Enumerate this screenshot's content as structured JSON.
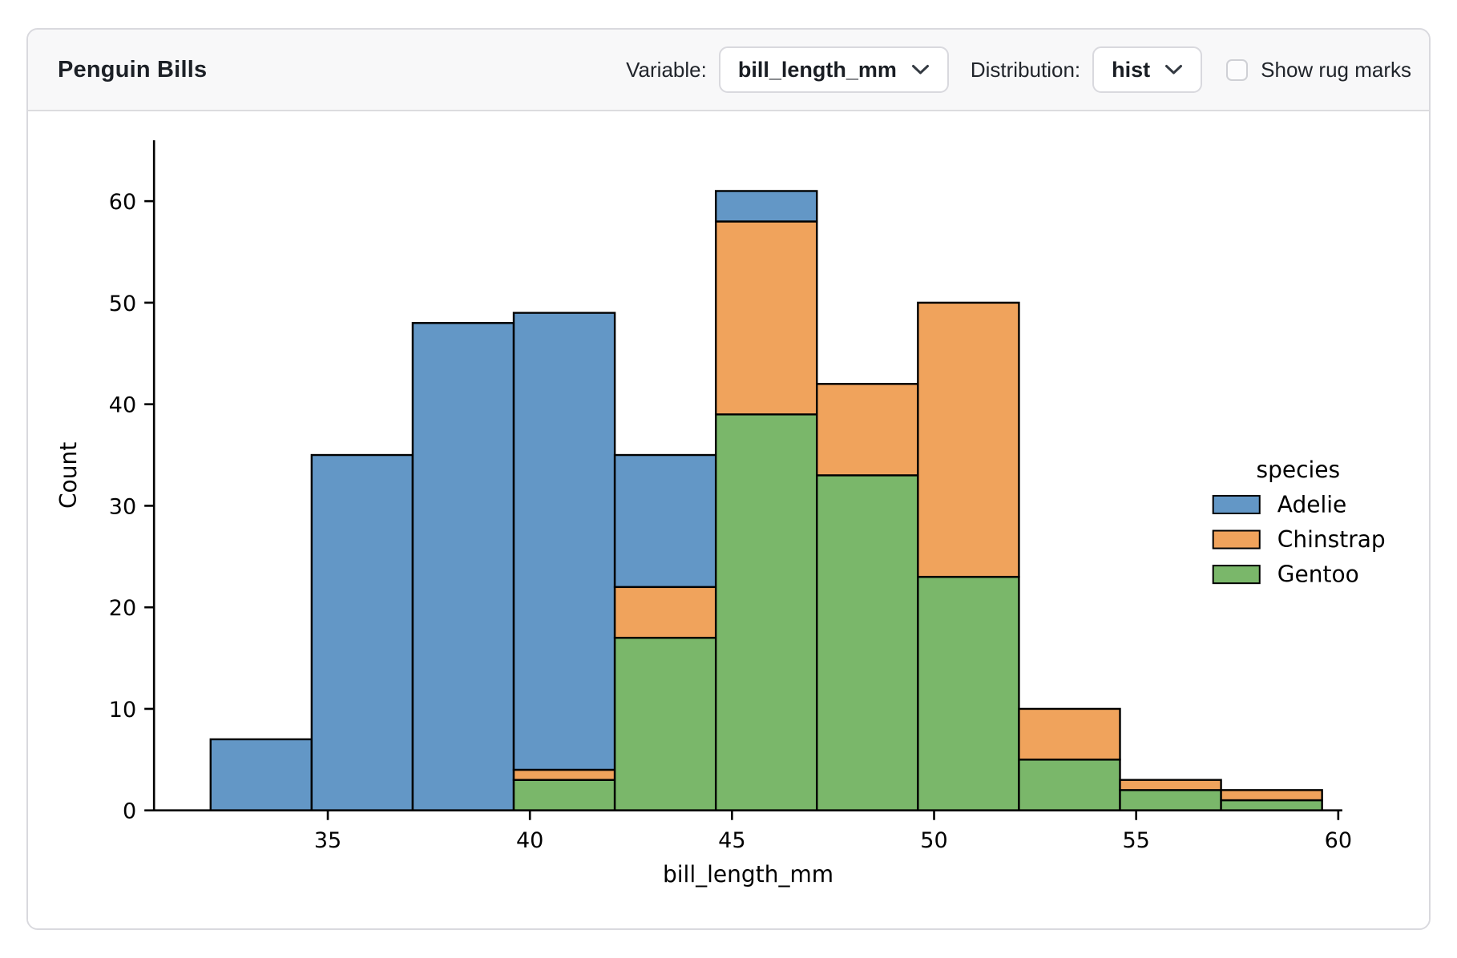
{
  "header": {
    "title": "Penguin Bills",
    "variable_label": "Variable:",
    "variable_value": "bill_length_mm",
    "distribution_label": "Distribution:",
    "distribution_value": "hist",
    "rug_label": "Show rug marks",
    "rug_checked": false
  },
  "chart_data": {
    "type": "bar",
    "subtype": "stacked-histogram",
    "xlabel": "bill_length_mm",
    "ylabel": "Count",
    "bin_edges": [
      32.1,
      34.6,
      37.1,
      39.6,
      42.1,
      44.6,
      47.1,
      49.6,
      52.1,
      54.6,
      57.1,
      59.6
    ],
    "series": [
      {
        "name": "Gentoo",
        "color": "#7ab76a",
        "values": [
          0,
          0,
          0,
          3,
          17,
          39,
          33,
          23,
          5,
          2,
          1
        ]
      },
      {
        "name": "Chinstrap",
        "color": "#f0a35c",
        "values": [
          0,
          0,
          0,
          1,
          5,
          19,
          9,
          27,
          5,
          1,
          1
        ]
      },
      {
        "name": "Adelie",
        "color": "#6397c6",
        "values": [
          7,
          35,
          48,
          45,
          13,
          3,
          0,
          0,
          0,
          0,
          0
        ]
      }
    ],
    "totals": [
      7,
      35,
      48,
      49,
      35,
      61,
      42,
      50,
      10,
      3,
      2
    ],
    "xticks": [
      35,
      40,
      45,
      50,
      55,
      60
    ],
    "yticks": [
      0,
      10,
      20,
      30,
      40,
      50,
      60
    ],
    "xlim": [
      30.7,
      60.1
    ],
    "ylim": [
      0,
      66
    ],
    "grid": false,
    "legend": {
      "title": "species",
      "position": "right",
      "entries": [
        {
          "label": "Adelie",
          "color": "#6397c6"
        },
        {
          "label": "Chinstrap",
          "color": "#f0a35c"
        },
        {
          "label": "Gentoo",
          "color": "#7ab76a"
        }
      ]
    },
    "bar_edge_color": "#000000"
  }
}
